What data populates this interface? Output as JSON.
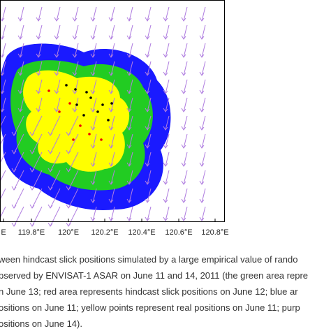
{
  "figure": {
    "xtick_labels": [
      "E",
      "119.8°E",
      "120°E",
      "120.2°E",
      "120.4°E",
      "120.6°E",
      "120.8°E"
    ]
  },
  "caption": {
    "lines": [
      "ween hindcast slick positions simulated by a large empirical value of rando",
      "bserved by ENVISAT-1 ASAR on June 11 and 14, 2011 (the green area repre",
      "n June 13; red area represents hindcast slick positions on June 12; blue ar",
      "ositions on June 11; yellow points represent real positions on June 11; purp",
      "ositions on June 14)."
    ]
  }
}
